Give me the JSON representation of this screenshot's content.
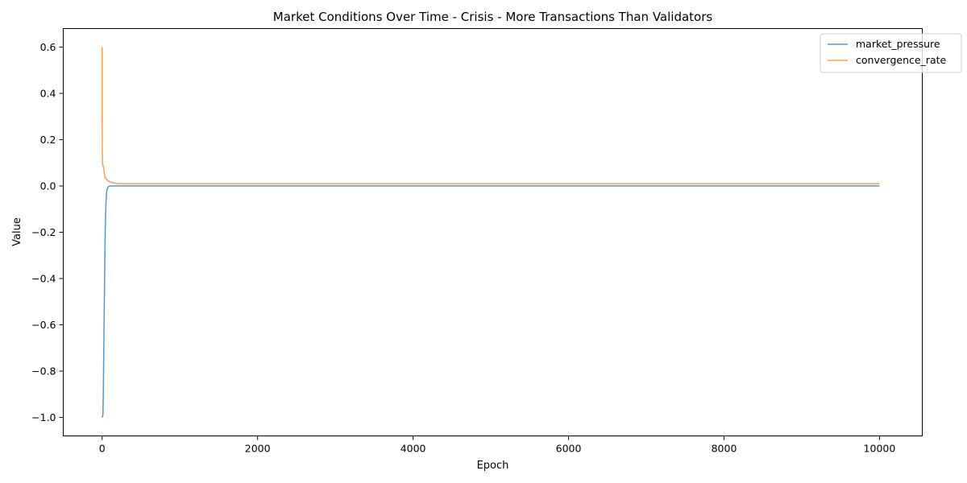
{
  "chart_data": {
    "type": "line",
    "title": "Market Conditions Over Time - Crisis - More Transactions Than Validators",
    "xlabel": "Epoch",
    "ylabel": "Value",
    "xlim": [
      -500,
      10550
    ],
    "ylim": [
      -1.08,
      0.68
    ],
    "xticks": [
      0,
      2000,
      4000,
      6000,
      8000,
      10000
    ],
    "xtick_labels": [
      "0",
      "2000",
      "4000",
      "6000",
      "8000",
      "10000"
    ],
    "yticks": [
      -1.0,
      -0.8,
      -0.6,
      -0.4,
      -0.2,
      0.0,
      0.2,
      0.4,
      0.6
    ],
    "ytick_labels": [
      "−1.0",
      "−0.8",
      "−0.6",
      "−0.4",
      "−0.2",
      "0.0",
      "0.2",
      "0.4",
      "0.6"
    ],
    "grid": false,
    "legend_position": "top-right",
    "series": [
      {
        "name": "market_pressure",
        "color": "#1f77b4",
        "x": [
          0,
          10,
          15,
          20,
          25,
          30,
          35,
          40,
          45,
          50,
          55,
          60,
          70,
          80,
          100,
          130,
          200,
          10000
        ],
        "y": [
          -1.0,
          -0.99,
          -0.9,
          -0.75,
          -0.6,
          -0.45,
          -0.3,
          -0.2,
          -0.12,
          -0.07,
          -0.04,
          -0.02,
          -0.01,
          -0.003,
          0.0,
          0.0,
          0.0,
          0.0
        ]
      },
      {
        "name": "convergence_rate",
        "color": "#ff7f0e",
        "x": [
          0,
          1,
          3,
          5,
          10,
          20,
          30,
          40,
          60,
          80,
          100,
          150,
          200,
          300,
          10000
        ],
        "y": [
          0.6,
          0.3,
          0.14,
          0.1,
          0.09,
          0.075,
          0.05,
          0.035,
          0.028,
          0.022,
          0.018,
          0.013,
          0.011,
          0.01,
          0.01
        ]
      }
    ]
  }
}
